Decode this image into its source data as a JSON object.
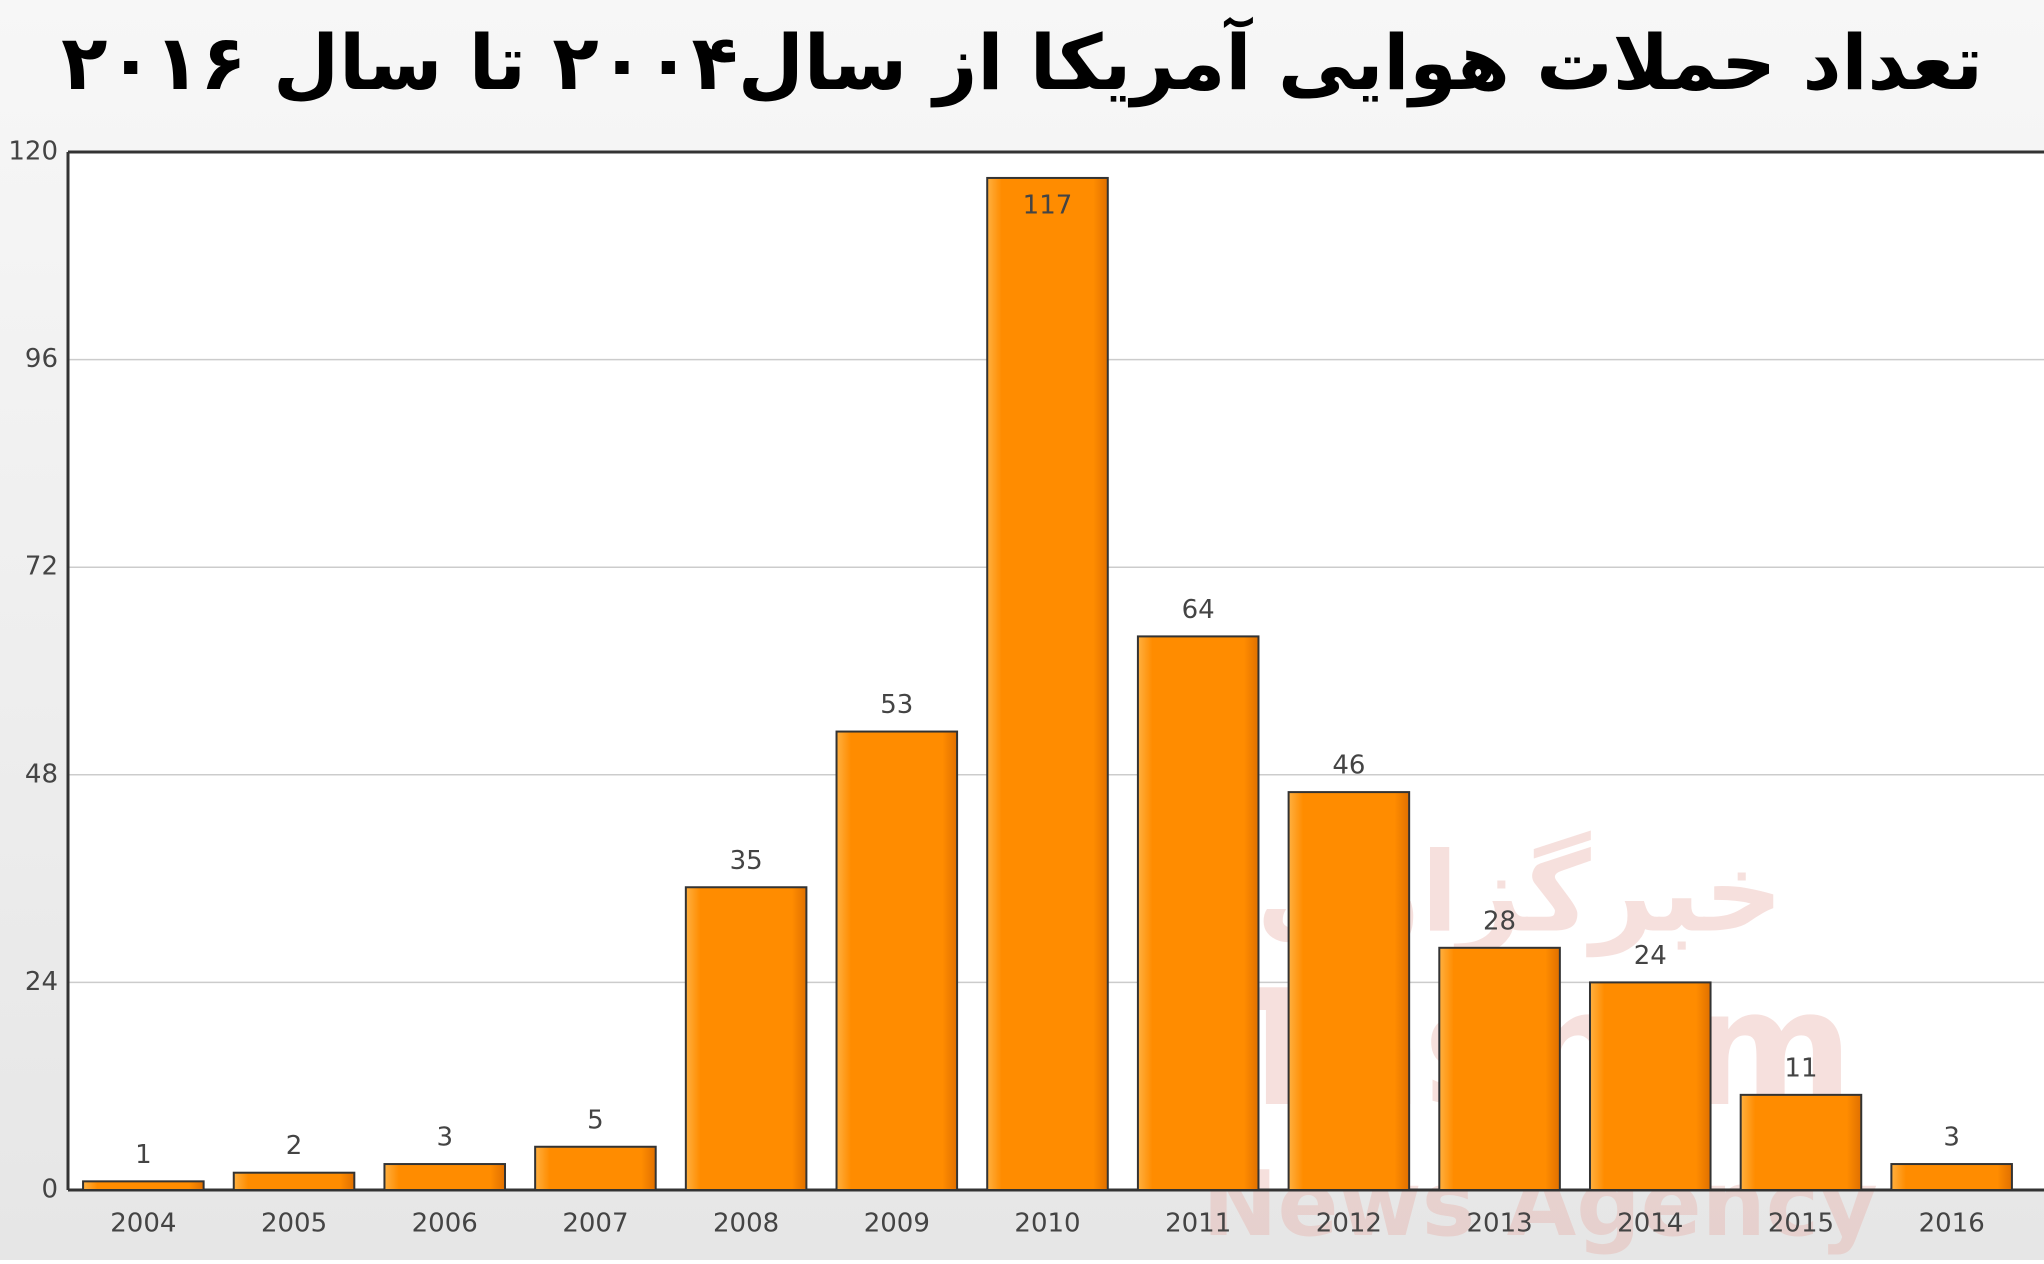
{
  "chart_data": {
    "type": "bar",
    "title": "تعداد حملات هوایی آمریکا از سال۲۰۰۴  تا سال ۲۰۱۶",
    "watermark": [
      "خبرگزاری",
      "Tasnim",
      "News Agency"
    ],
    "categories": [
      "2004",
      "2005",
      "2006",
      "2007",
      "2008",
      "2009",
      "2010",
      "2011",
      "2012",
      "2013",
      "2014",
      "2015",
      "2016"
    ],
    "values": [
      1,
      2,
      3,
      5,
      35,
      53,
      117,
      64,
      46,
      28,
      24,
      11,
      3
    ],
    "color": "#ff8c00",
    "ylim": [
      0,
      120
    ],
    "yticks": [
      0,
      24,
      48,
      72,
      96,
      120
    ],
    "grid": true
  }
}
